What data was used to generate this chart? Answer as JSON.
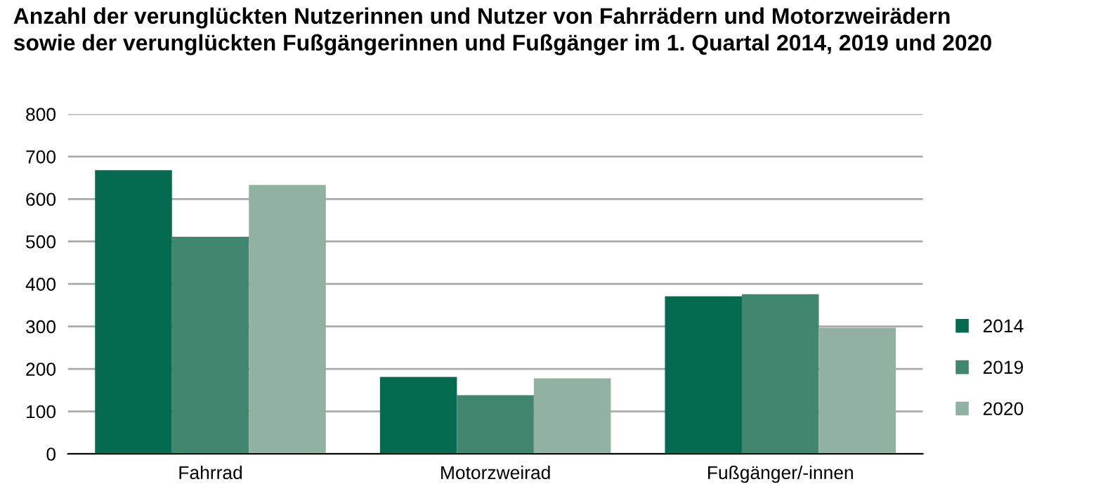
{
  "chart_data": {
    "type": "bar",
    "title": "Anzahl der verunglückten Nutzerinnen und Nutzer von Fahrrädern und Motorzweirädern\nsowie der verunglückten Fußgängerinnen und Fußgänger im 1. Quartal 2014, 2019 und 2020",
    "categories": [
      "Fahrrad",
      "Motorzweirad",
      "Fußgänger/-innen"
    ],
    "series": [
      {
        "name": "2014",
        "color": "#046a50",
        "values": [
          668,
          181,
          371
        ]
      },
      {
        "name": "2019",
        "color": "#41876f",
        "values": [
          511,
          138,
          376
        ]
      },
      {
        "name": "2020",
        "color": "#91b1a3",
        "values": [
          633,
          178,
          297
        ]
      }
    ],
    "ylim": [
      0,
      800
    ],
    "yticks": [
      0,
      100,
      200,
      300,
      400,
      500,
      600,
      700,
      800
    ],
    "grid": "y",
    "legend": "right"
  }
}
